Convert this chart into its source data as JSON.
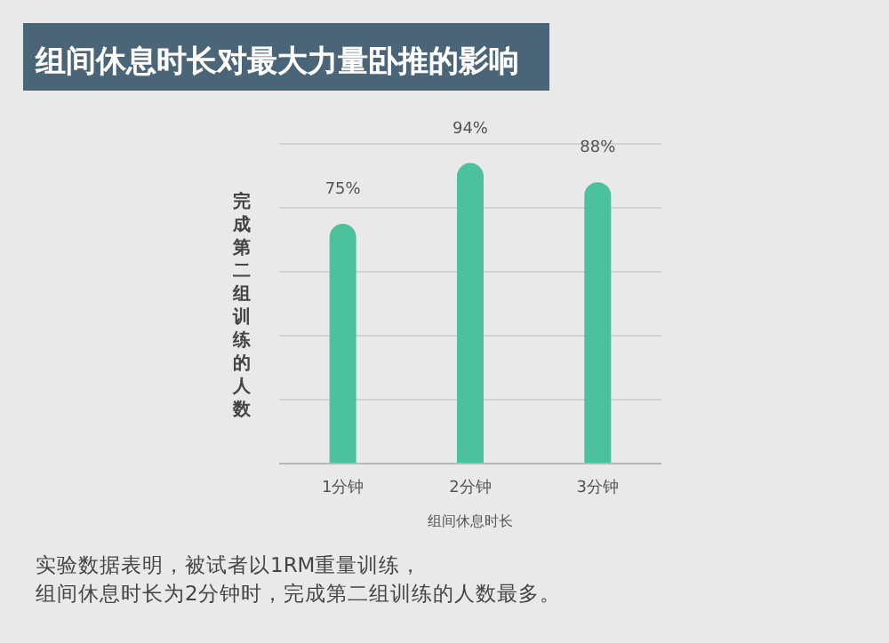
{
  "chart_data": {
    "type": "bar",
    "title": "组间休息时长对最大力量卧推的影响",
    "xlabel": "组间休息时长",
    "ylabel": "完成第二组训练的人数",
    "categories": [
      "1分钟",
      "2分钟",
      "3分钟"
    ],
    "values": [
      75,
      94,
      88
    ],
    "value_labels": [
      "75%",
      "94%",
      "88%"
    ],
    "color": "#4cc29c",
    "ylim": [
      0,
      100
    ],
    "yticks": [
      {
        "value": 0,
        "label": null
      },
      {
        "value": 20,
        "label": null
      },
      {
        "value": 40,
        "label": null
      },
      {
        "value": 60,
        "label": null
      },
      {
        "value": 80,
        "label": null
      },
      {
        "value": 100,
        "label": null
      }
    ],
    "tick_labels": "x",
    "grid": "y",
    "annotations": [
      "实验数据表明，被试者以1RM重量训练，组间休息时长为2分钟时，完成第二组训练的人数最多。"
    ]
  }
}
